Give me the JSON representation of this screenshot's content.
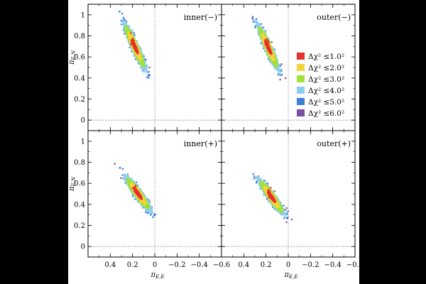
{
  "chart_data": {
    "type": "scatter",
    "x_axis": {
      "label": "π_E,E",
      "label_main": "π",
      "label_sub": "E,E",
      "xlim": [
        0.6,
        -0.6
      ],
      "ticks": [
        0.4,
        0.2,
        0,
        -0.2,
        -0.4,
        -0.6
      ],
      "tick_labels": [
        "0.4",
        "0.2",
        "0",
        "−0.2",
        "−0.4",
        "−0.6"
      ]
    },
    "y_axis": {
      "label": "π_E,N",
      "label_main": "π",
      "label_sub": "E,N",
      "ylim": [
        -0.1,
        1.1
      ],
      "ticks": [
        0,
        0.2,
        0.4,
        0.6,
        0.8,
        1.0
      ],
      "tick_labels": [
        "0",
        "0.2",
        "0.4",
        "0.6",
        "0.8",
        "1"
      ]
    },
    "reference_lines": {
      "x": 0,
      "y": 0,
      "style": "dotted"
    },
    "legend": {
      "panel": "outer(−)",
      "entries": [
        {
          "label": "Δχ² ≤1.0²",
          "color": "#e8312a"
        },
        {
          "label": "Δχ² ≤2.0²",
          "color": "#f5d33a"
        },
        {
          "label": "Δχ² ≤3.0²",
          "color": "#9ee23c"
        },
        {
          "label": "Δχ² ≤4.0²",
          "color": "#8ecdf0"
        },
        {
          "label": "Δχ² ≤5.0²",
          "color": "#3a7fd8"
        },
        {
          "label": "Δχ² ≤6.0²",
          "color": "#7a4ea0"
        }
      ]
    },
    "panels": [
      {
        "name": "inner(−)",
        "center": [
          0.18,
          0.7
        ],
        "best_fit": [
          0.2,
          0.75
        ],
        "axis_minor": 0.055,
        "axis_major": 0.4,
        "angle_deg": 67,
        "cutoff": 0.19
      },
      {
        "name": "outer(−)",
        "center": [
          0.18,
          0.69
        ],
        "best_fit": [
          0.19,
          0.73
        ],
        "axis_minor": 0.055,
        "axis_major": 0.39,
        "angle_deg": 67,
        "cutoff": 0.19
      },
      {
        "name": "inner(+)",
        "center": [
          0.15,
          0.5
        ],
        "best_fit": [
          0.18,
          0.55
        ],
        "axis_minor": 0.06,
        "axis_major": 0.33,
        "angle_deg": 56,
        "cutoff": 0.16
      },
      {
        "name": "outer(+)",
        "center": [
          0.15,
          0.47
        ],
        "best_fit": [
          0.17,
          0.52
        ],
        "axis_minor": 0.06,
        "axis_major": 0.33,
        "angle_deg": 56,
        "cutoff": 0.14
      }
    ]
  }
}
